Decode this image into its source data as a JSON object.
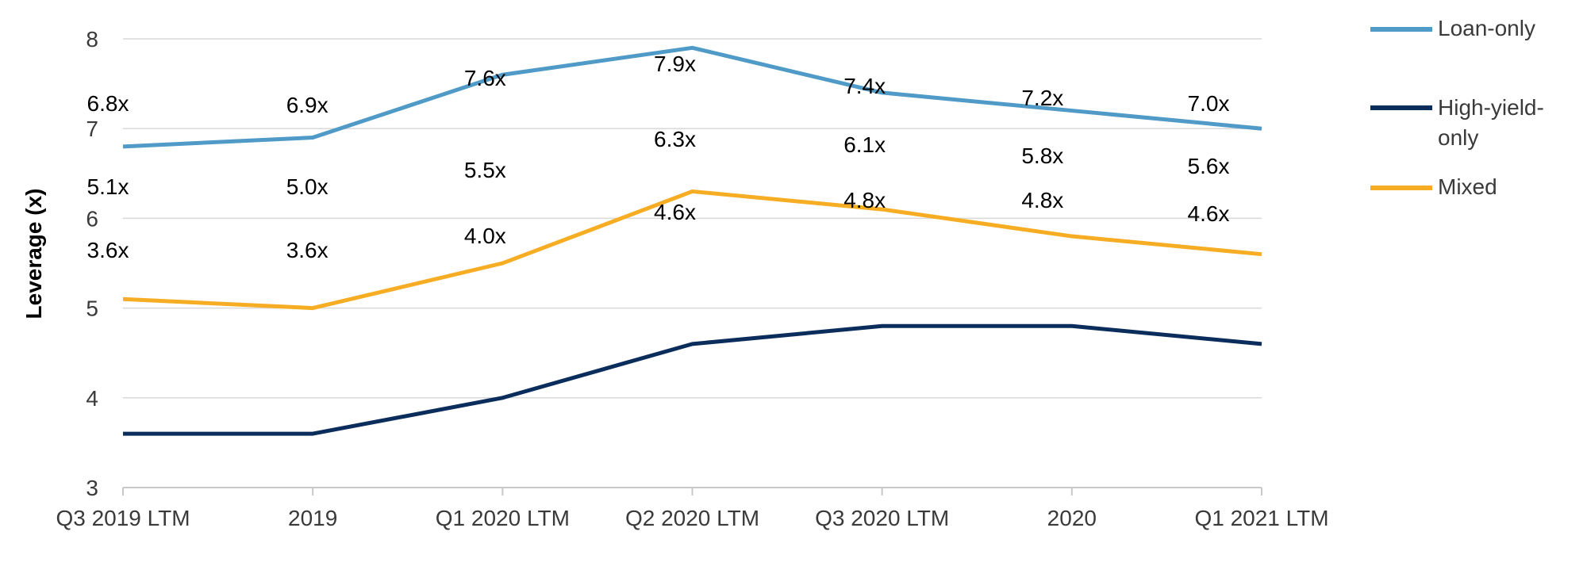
{
  "chart_data": {
    "type": "line",
    "ylabel": "Leverage (x)",
    "xlabel": "",
    "ylim": [
      3,
      8
    ],
    "yticks": [
      3,
      4,
      5,
      6,
      7,
      8
    ],
    "grid": "horizontal",
    "legend_position": "right",
    "categories": [
      "Q3 2019 LTM",
      "2019",
      "Q1 2020 LTM",
      "Q2 2020 LTM",
      "Q3 2020 LTM",
      "2020",
      "Q1 2021 LTM"
    ],
    "series": [
      {
        "name": "Loan-only",
        "color": "#4f9ac6",
        "values": [
          6.8,
          6.9,
          7.6,
          7.9,
          7.4,
          7.2,
          7.0
        ],
        "labels": [
          "6.8x",
          "6.9x",
          "7.6x",
          "7.9x",
          "7.4x",
          "7.2x",
          "7.0x"
        ]
      },
      {
        "name": "High-yield-only",
        "color": "#0b2d5b",
        "values": [
          3.6,
          3.6,
          4.0,
          4.6,
          4.8,
          4.8,
          4.6
        ],
        "labels": [
          "3.6x",
          "3.6x",
          "4.0x",
          "4.6x",
          "4.8x",
          "4.8x",
          "4.6x"
        ]
      },
      {
        "name": "Mixed",
        "color": "#f7ad23",
        "values": [
          5.1,
          5.0,
          5.5,
          6.3,
          6.1,
          5.8,
          5.6
        ],
        "labels": [
          "5.1x",
          "5.0x",
          "5.5x",
          "6.3x",
          "6.1x",
          "5.8x",
          "5.6x"
        ]
      }
    ]
  }
}
